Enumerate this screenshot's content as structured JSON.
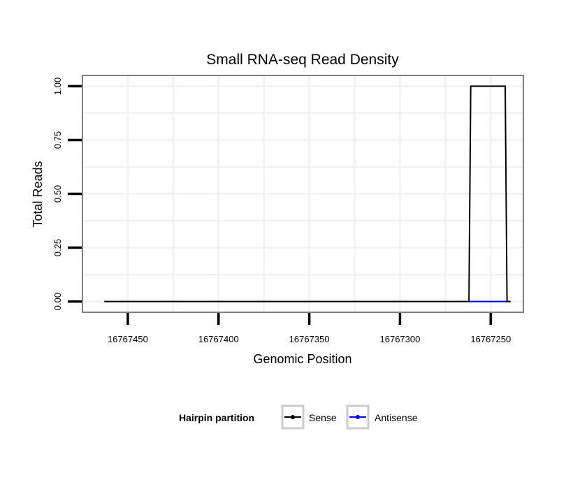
{
  "chart_data": {
    "type": "line",
    "title": "Small RNA-seq Read Density",
    "xlabel": "Genomic Position",
    "ylabel": "Total Reads",
    "x_reversed": true,
    "xlim": [
      16767475,
      16767232
    ],
    "ylim": [
      -0.05,
      1.05
    ],
    "x_ticks": [
      16767450,
      16767400,
      16767350,
      16767300,
      16767250
    ],
    "x_tick_labels": [
      "16767450",
      "16767400",
      "16767350",
      "16767300",
      "16767250"
    ],
    "y_ticks": [
      0,
      0.25,
      0.5,
      0.75,
      1
    ],
    "y_tick_labels": [
      "0.00",
      "0.25",
      "0.50",
      "0.75",
      "1.00"
    ],
    "grid": true,
    "legend": {
      "title": "Hairpin partition",
      "position": "bottom"
    },
    "series": [
      {
        "name": "Sense",
        "color": "#000000",
        "x": [
          16767463,
          16767262,
          16767261,
          16767242,
          16767241,
          16767239
        ],
        "y": [
          0,
          0,
          1,
          1,
          0,
          0
        ]
      },
      {
        "name": "Antisense",
        "color": "#0000ff",
        "x": [
          16767262,
          16767241
        ],
        "y": [
          0,
          0
        ]
      }
    ]
  }
}
